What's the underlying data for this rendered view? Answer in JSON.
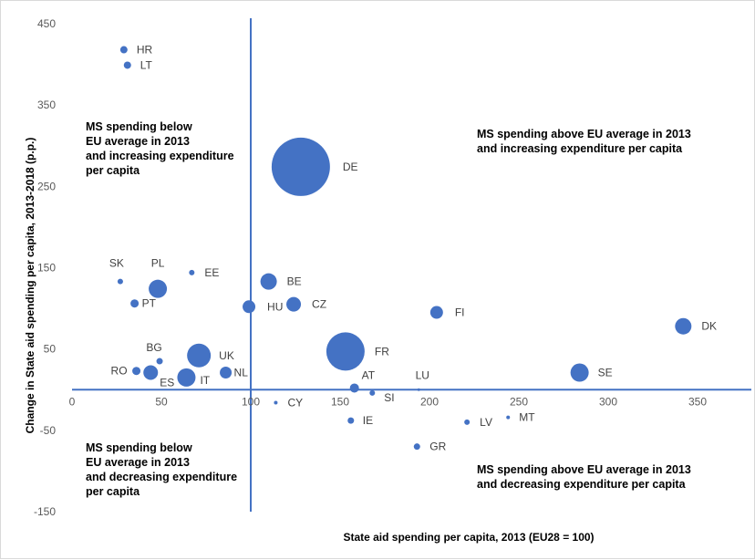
{
  "chart_data": {
    "type": "scatter",
    "title": "",
    "xlabel": "State aid spending per capita, 2013 (EU28 = 100)",
    "ylabel": "Change in State aid spending per capita, 2013-2018 (p.p.)",
    "xlim": [
      0,
      375
    ],
    "ylim": [
      -150,
      450
    ],
    "x_ticks": [
      0,
      50,
      100,
      150,
      200,
      250,
      300,
      350
    ],
    "y_ticks": [
      -150,
      -50,
      50,
      150,
      250,
      350,
      450
    ],
    "reference_lines": {
      "x": 100,
      "y": 0
    },
    "grid": false,
    "legend": "none",
    "marker_color": "#4472C4",
    "points": [
      {
        "label": "HR",
        "x": 29,
        "y": 418,
        "size": 4
      },
      {
        "label": "LT",
        "x": 31,
        "y": 399,
        "size": 4
      },
      {
        "label": "DE",
        "x": 128,
        "y": 274,
        "size": 32
      },
      {
        "label": "SK",
        "x": 27,
        "y": 133,
        "size": 3
      },
      {
        "label": "PL",
        "x": 48,
        "y": 124,
        "size": 10
      },
      {
        "label": "EE",
        "x": 67,
        "y": 144,
        "size": 3
      },
      {
        "label": "PT",
        "x": 35,
        "y": 106,
        "size": 4.5
      },
      {
        "label": "BE",
        "x": 110,
        "y": 133,
        "size": 9
      },
      {
        "label": "HU",
        "x": 99,
        "y": 102,
        "size": 7
      },
      {
        "label": "CZ",
        "x": 124,
        "y": 105,
        "size": 8
      },
      {
        "label": "FI",
        "x": 204,
        "y": 95,
        "size": 7
      },
      {
        "label": "DK",
        "x": 342,
        "y": 78,
        "size": 9
      },
      {
        "label": "BG",
        "x": 49,
        "y": 35,
        "size": 3.5
      },
      {
        "label": "UK",
        "x": 71,
        "y": 42,
        "size": 13
      },
      {
        "label": "FR",
        "x": 153,
        "y": 47,
        "size": 21
      },
      {
        "label": "RO",
        "x": 36,
        "y": 23,
        "size": 4.5
      },
      {
        "label": "ES",
        "x": 44,
        "y": 21,
        "size": 8
      },
      {
        "label": "IT",
        "x": 64,
        "y": 15,
        "size": 10
      },
      {
        "label": "NL",
        "x": 86,
        "y": 21,
        "size": 6.5
      },
      {
        "label": "SE",
        "x": 284,
        "y": 21,
        "size": 10
      },
      {
        "label": "AT",
        "x": 158,
        "y": 2,
        "size": 5
      },
      {
        "label": "LU",
        "x": 194,
        "y": 0,
        "size": 1.5
      },
      {
        "label": "SI",
        "x": 168,
        "y": -4,
        "size": 3
      },
      {
        "label": "CY",
        "x": 114,
        "y": -16,
        "size": 2
      },
      {
        "label": "IE",
        "x": 156,
        "y": -38,
        "size": 3.5
      },
      {
        "label": "LV",
        "x": 221,
        "y": -40,
        "size": 3
      },
      {
        "label": "MT",
        "x": 244,
        "y": -34,
        "size": 2
      },
      {
        "label": "GR",
        "x": 193,
        "y": -70,
        "size": 3.5
      }
    ],
    "annotations": [
      {
        "text": "MS spending below\nEU average in 2013\nand increasing expenditure\nper capita",
        "quadrant": "top-left"
      },
      {
        "text": "MS spending above EU average in 2013\nand increasing expenditure per capita",
        "quadrant": "top-right"
      },
      {
        "text": "MS spending below\nEU average in 2013\nand decreasing expenditure\nper capita",
        "quadrant": "bottom-left"
      },
      {
        "text": "MS spending above EU average in 2013\nand decreasing expenditure per capita",
        "quadrant": "bottom-right"
      }
    ]
  }
}
